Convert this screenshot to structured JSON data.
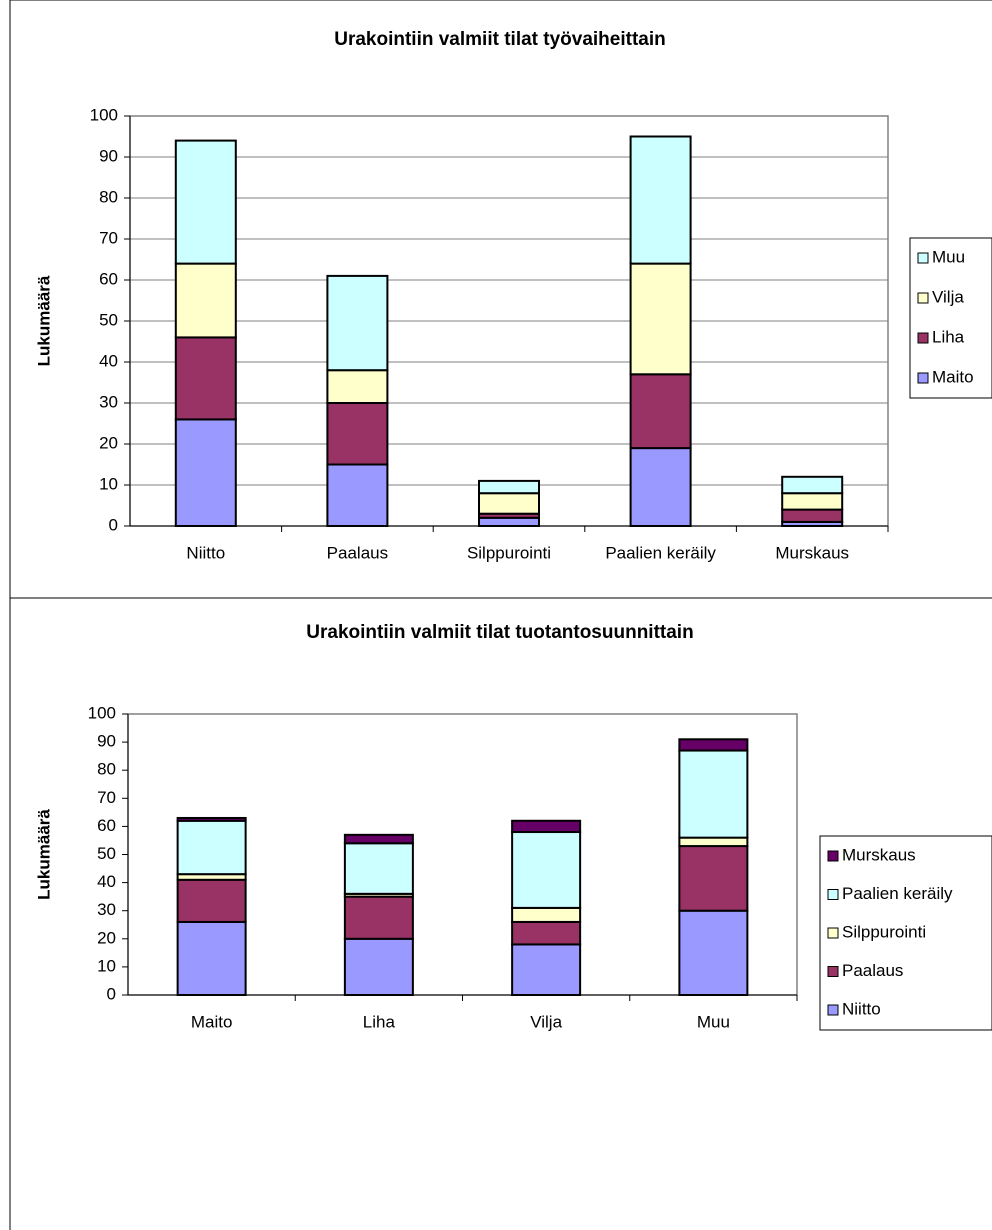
{
  "chart_data": [
    {
      "type": "stacked_bar",
      "title": "Urakointiin valmiit tilat työvaiheittain",
      "ylabel": "Lukumäärä",
      "categories": [
        "Niitto",
        "Paalaus",
        "Silppurointi",
        "Paalien keräily",
        "Murskaus"
      ],
      "series": [
        {
          "name": "Maito",
          "color": "#9999ff",
          "values": [
            26,
            15,
            2,
            19,
            1
          ]
        },
        {
          "name": "Liha",
          "color": "#993366",
          "values": [
            20,
            15,
            1,
            18,
            3
          ]
        },
        {
          "name": "Vilja",
          "color": "#ffffcc",
          "values": [
            18,
            8,
            5,
            27,
            4
          ]
        },
        {
          "name": "Muu",
          "color": "#ccffff",
          "values": [
            30,
            23,
            3,
            31,
            4
          ]
        }
      ],
      "ylim": [
        0,
        100
      ],
      "yticks": [
        0,
        10,
        20,
        30,
        40,
        50,
        60,
        70,
        80,
        90,
        100
      ],
      "grid": true,
      "legend": "right"
    },
    {
      "type": "stacked_bar",
      "title": "Urakointiin valmiit tilat tuotantosuunnittain",
      "ylabel": "Lukumäärä",
      "categories": [
        "Maito",
        "Liha",
        "Vilja",
        "Muu"
      ],
      "series": [
        {
          "name": "Niitto",
          "color": "#9999ff",
          "values": [
            26,
            20,
            18,
            30
          ]
        },
        {
          "name": "Paalaus",
          "color": "#993366",
          "values": [
            15,
            15,
            8,
            23
          ]
        },
        {
          "name": "Silppurointi",
          "color": "#ffffcc",
          "values": [
            2,
            1,
            5,
            3
          ]
        },
        {
          "name": "Paalien keräily",
          "color": "#ccffff",
          "values": [
            19,
            18,
            27,
            31
          ]
        },
        {
          "name": "Murskaus",
          "color": "#660066",
          "values": [
            1,
            3,
            4,
            4
          ]
        }
      ],
      "ylim": [
        0,
        100
      ],
      "yticks": [
        0,
        10,
        20,
        30,
        40,
        50,
        60,
        70,
        80,
        90,
        100
      ],
      "grid": false,
      "legend": "right"
    }
  ]
}
